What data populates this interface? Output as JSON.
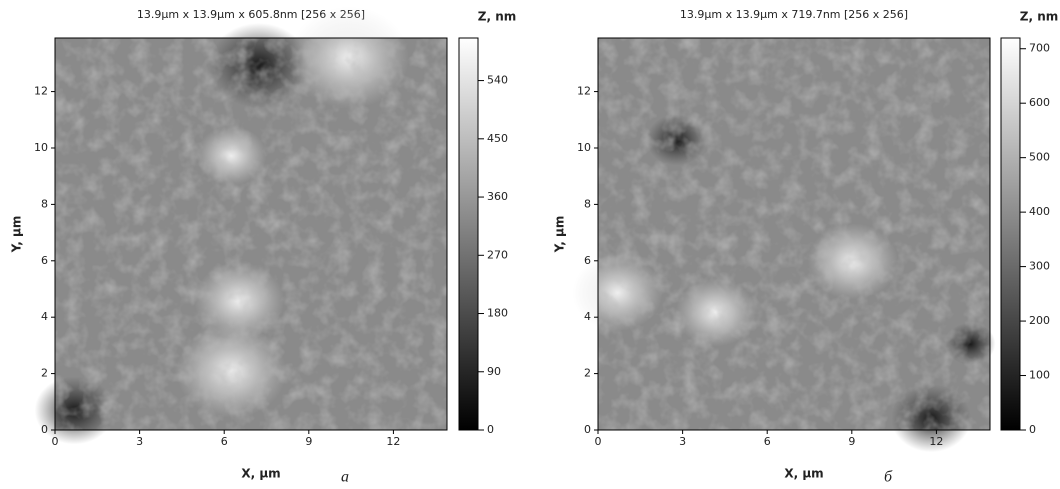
{
  "chart_data": [
    {
      "type": "heatmap",
      "title": "13.9µm x 13.9µm x 605.8nm [256 x 256]",
      "xlabel": "X, µm",
      "ylabel": "Y, µm",
      "xlim": [
        0,
        13.9
      ],
      "ylim": [
        0,
        13.9
      ],
      "xticks": [
        0,
        3,
        6,
        9,
        12
      ],
      "yticks": [
        0,
        2,
        4,
        6,
        8,
        10,
        12
      ],
      "colorbar_label": "Z, nm",
      "zlim": [
        0,
        605.8
      ],
      "zticks": [
        0,
        90,
        180,
        270,
        360,
        450,
        540
      ],
      "caption": "а"
    },
    {
      "type": "heatmap",
      "title": "13.9µm x 13.9µm x 719.7nm [256 x 256]",
      "xlabel": "X, µm",
      "ylabel": "Y, µm",
      "xlim": [
        0,
        13.9
      ],
      "ylim": [
        0,
        13.9
      ],
      "xticks": [
        0,
        3,
        6,
        9,
        12
      ],
      "yticks": [
        0,
        2,
        4,
        6,
        8,
        10,
        12
      ],
      "colorbar_label": "Z, nm",
      "zlim": [
        0,
        719.7
      ],
      "zticks": [
        0,
        100,
        200,
        300,
        400,
        500,
        600,
        700
      ],
      "caption": "б"
    }
  ]
}
